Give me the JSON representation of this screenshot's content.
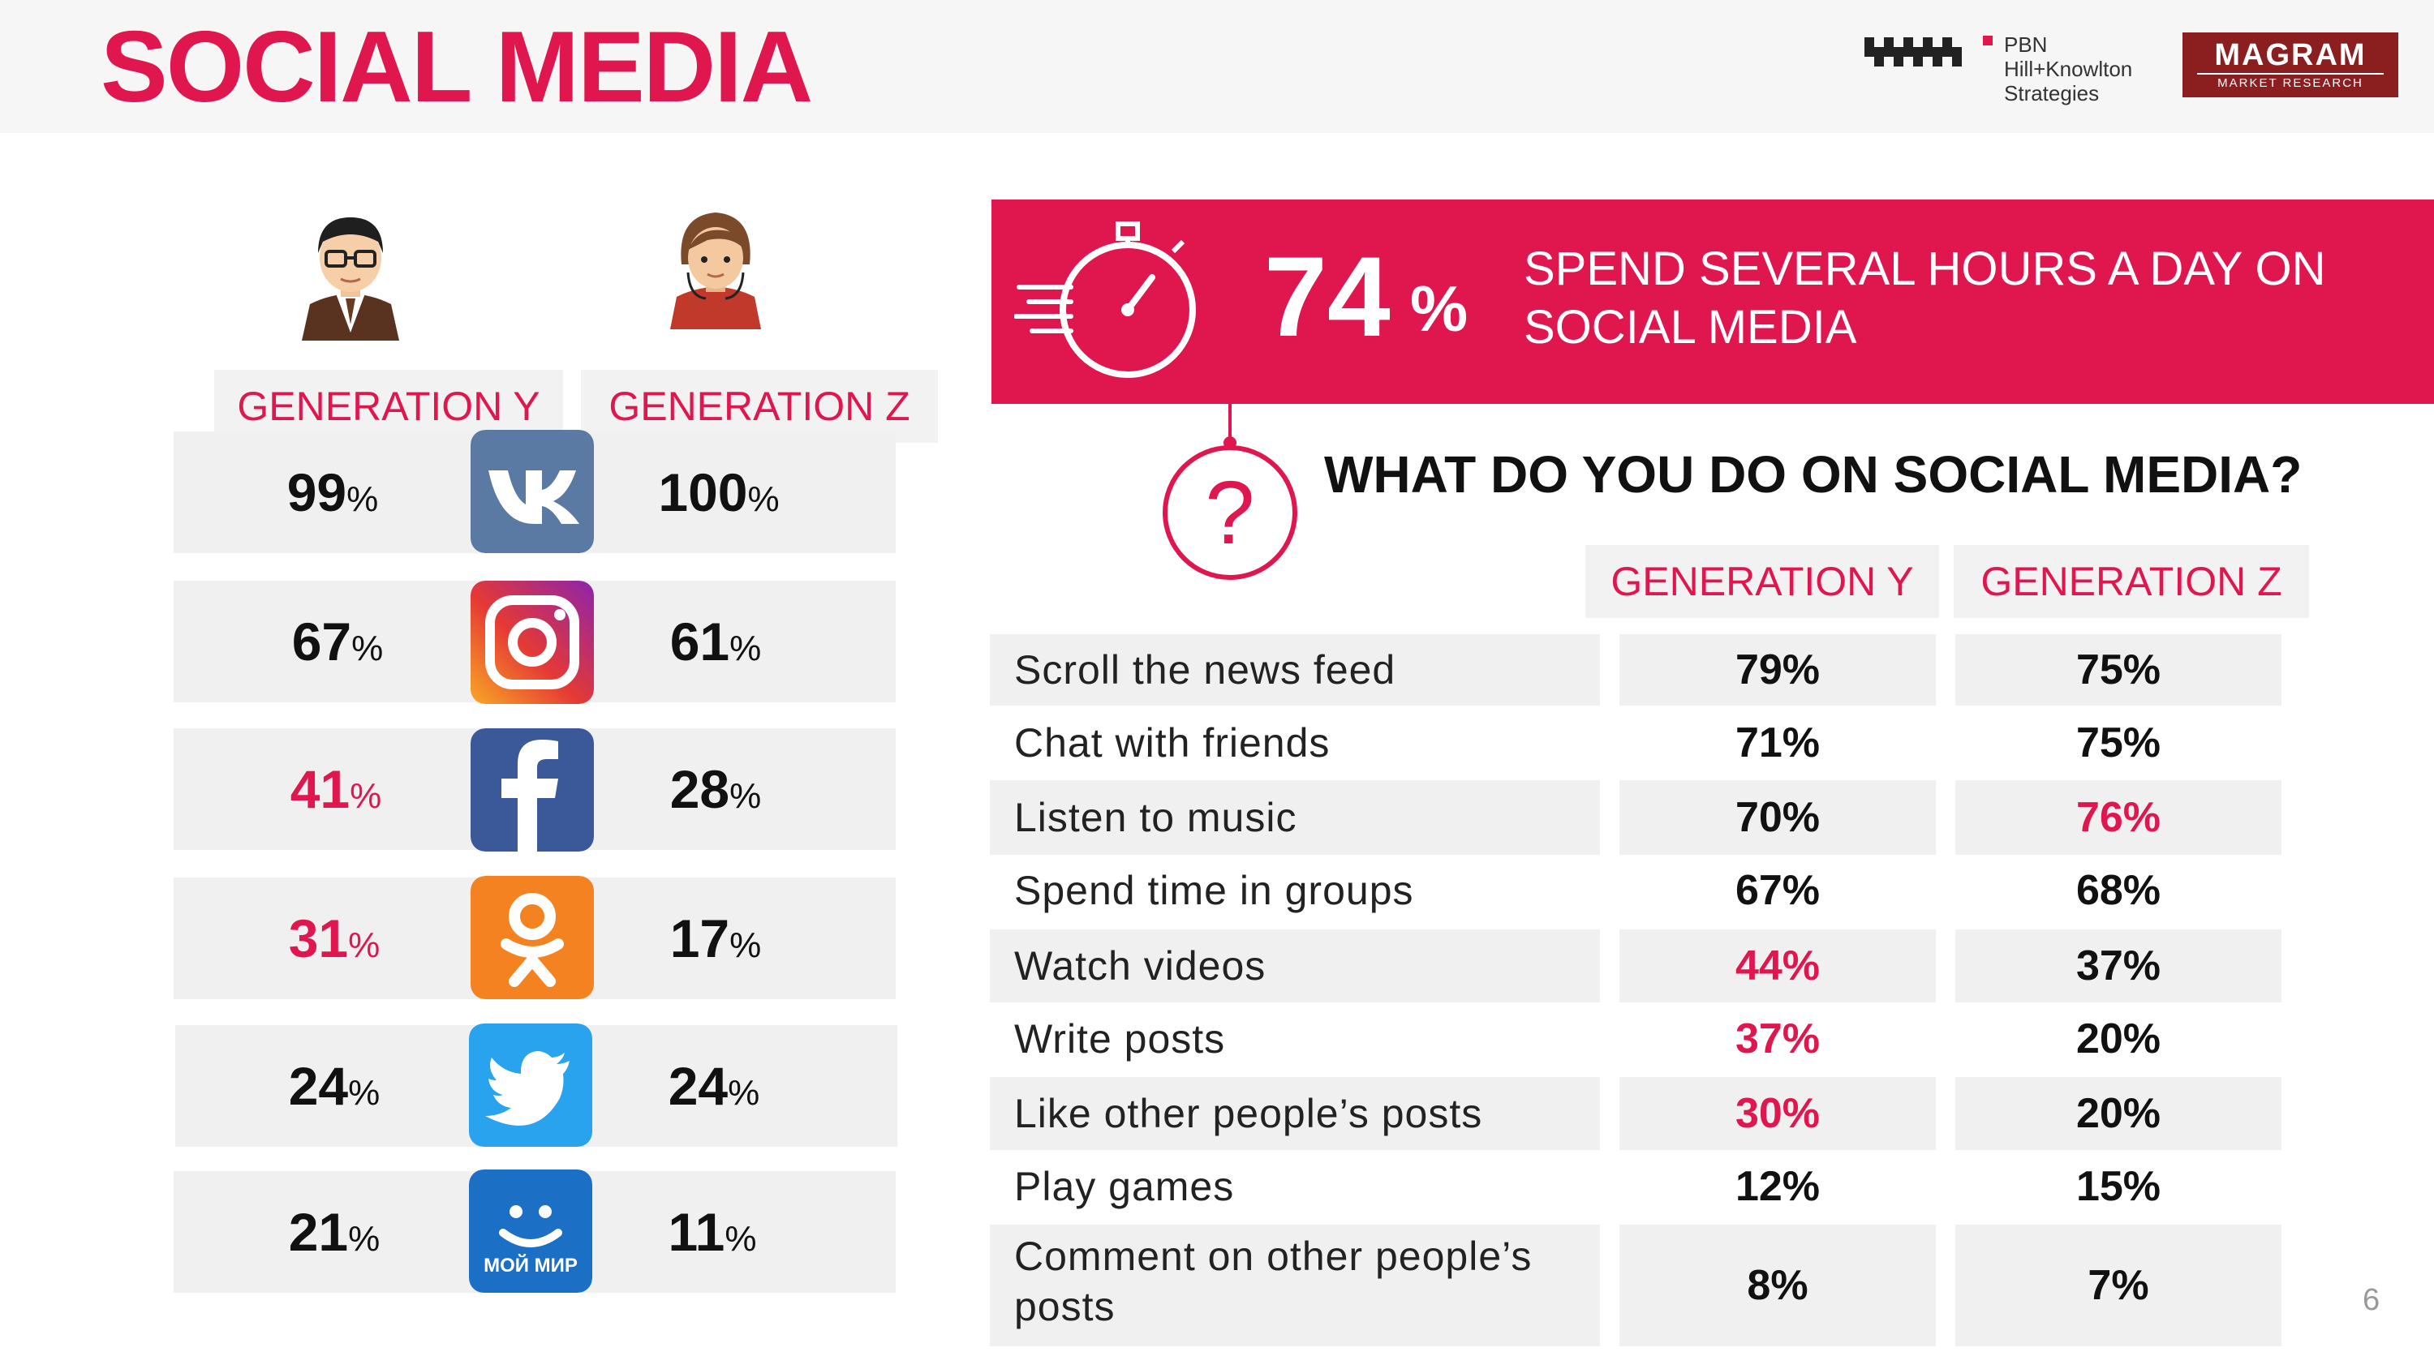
{
  "title": "SOCIAL MEDIA",
  "logos": {
    "pbn": [
      "PBN",
      "Hill+Knowlton",
      "Strategies"
    ],
    "magram": {
      "name": "MAGRAM",
      "sub": "MARKET RESEARCH"
    }
  },
  "generations": {
    "y": "GENERATION Y",
    "z": "GENERATION Z"
  },
  "platforms": [
    {
      "icon": "vk-icon",
      "gen_y": "99",
      "gen_z": "100",
      "highlight_y": false
    },
    {
      "icon": "instagram-icon",
      "gen_y": "67",
      "gen_z": "61",
      "highlight_y": false
    },
    {
      "icon": "facebook-icon",
      "gen_y": "41",
      "gen_z": "28",
      "highlight_y": true
    },
    {
      "icon": "odnoklassniki-icon",
      "gen_y": "31",
      "gen_z": "17",
      "highlight_y": true
    },
    {
      "icon": "twitter-icon",
      "gen_y": "24",
      "gen_z": "24",
      "highlight_y": false
    },
    {
      "icon": "moi-mir-icon",
      "gen_y": "21",
      "gen_z": "11",
      "highlight_y": false,
      "icon_label": "МОЙ МИР"
    }
  ],
  "percent_symbol": "%",
  "banner": {
    "value": "74",
    "symbol": "%",
    "text": "SPEND SEVERAL HOURS A DAY ON SOCIAL MEDIA"
  },
  "question": "WHAT DO YOU DO ON SOCIAL MEDIA?",
  "activities": [
    {
      "label": "Scroll the news feed",
      "gen_y": "79%",
      "gen_z": "75%",
      "red_y": false,
      "red_z": false
    },
    {
      "label": "Chat with friends",
      "gen_y": "71%",
      "gen_z": "75%",
      "red_y": false,
      "red_z": false
    },
    {
      "label": "Listen to music",
      "gen_y": "70%",
      "gen_z": "76%",
      "red_y": false,
      "red_z": true
    },
    {
      "label": "Spend time in groups",
      "gen_y": "67%",
      "gen_z": "68%",
      "red_y": false,
      "red_z": false
    },
    {
      "label": "Watch videos",
      "gen_y": "44%",
      "gen_z": "37%",
      "red_y": true,
      "red_z": false
    },
    {
      "label": "Write posts",
      "gen_y": "37%",
      "gen_z": "20%",
      "red_y": true,
      "red_z": false
    },
    {
      "label": "Like other people’s posts",
      "gen_y": "30%",
      "gen_z": "20%",
      "red_y": true,
      "red_z": false
    },
    {
      "label": "Play games",
      "gen_y": "12%",
      "gen_z": "15%",
      "red_y": false,
      "red_z": false
    },
    {
      "label": "Comment on other people’s posts",
      "gen_y": "8%",
      "gen_z": "7%",
      "red_y": false,
      "red_z": false
    }
  ],
  "page_number": "6",
  "colors": {
    "accent": "#e0174f",
    "row_bg": "#f0f0f0",
    "magram": "#8b1f20"
  }
}
